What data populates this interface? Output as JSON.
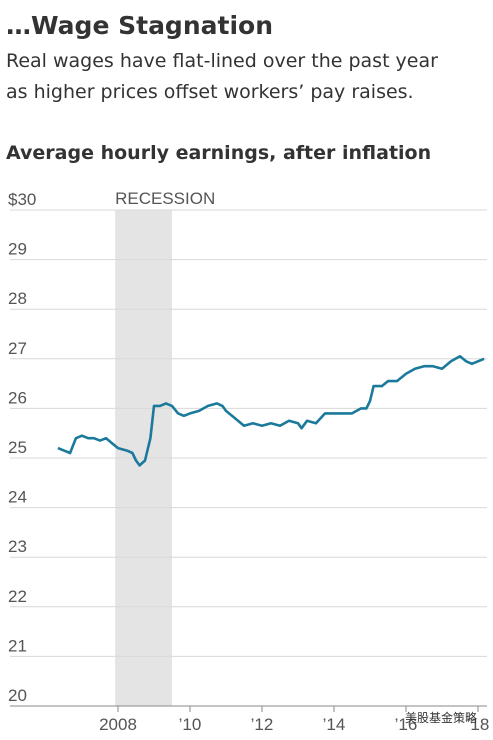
{
  "chart_data": {
    "type": "line",
    "title": "…Wage Stagnation",
    "subtitle": [
      "Real wages have flat-lined over the past year",
      "as higher prices offset workers’ pay raises."
    ],
    "chart_title": "Average hourly earnings, after inflation",
    "recession": {
      "label": "RECESSION",
      "start": 2007.92,
      "end": 2009.5
    },
    "watermark": "美股基金策略",
    "xlim": [
      2005,
      2018.25
    ],
    "xticks": [
      {
        "value": 2008,
        "label": "2008"
      },
      {
        "value": 2010,
        "label": "’10"
      },
      {
        "value": 2012,
        "label": "’12"
      },
      {
        "value": 2014,
        "label": "’14"
      },
      {
        "value": 2016,
        "label": "’16"
      },
      {
        "value": 2018,
        "label": "’18"
      }
    ],
    "ylim": [
      20,
      30
    ],
    "yticks": [
      {
        "value": 30,
        "label": "$30"
      },
      29,
      28,
      27,
      26,
      25,
      24,
      23,
      22,
      21,
      20
    ],
    "grid": true,
    "x": [
      2006.33,
      2006.5,
      2006.67,
      2006.83,
      2007.0,
      2007.17,
      2007.33,
      2007.5,
      2007.67,
      2007.83,
      2008.0,
      2008.25,
      2008.4,
      2008.5,
      2008.6,
      2008.75,
      2008.9,
      2009.0,
      2009.17,
      2009.33,
      2009.5,
      2009.67,
      2009.83,
      2010.0,
      2010.25,
      2010.5,
      2010.75,
      2010.9,
      2011.0,
      2011.25,
      2011.5,
      2011.75,
      2012.0,
      2012.25,
      2012.5,
      2012.75,
      2013.0,
      2013.1,
      2013.25,
      2013.5,
      2013.75,
      2014.0,
      2014.25,
      2014.5,
      2014.75,
      2014.9,
      2015.0,
      2015.1,
      2015.33,
      2015.5,
      2015.75,
      2016.0,
      2016.25,
      2016.5,
      2016.75,
      2017.0,
      2017.25,
      2017.5,
      2017.67,
      2017.83,
      2018.0,
      2018.17
    ],
    "series": [
      {
        "name": "Average hourly earnings",
        "color": "#1b7a9c",
        "values": [
          25.2,
          25.15,
          25.1,
          25.4,
          25.45,
          25.4,
          25.4,
          25.35,
          25.4,
          25.3,
          25.2,
          25.15,
          25.1,
          24.95,
          24.85,
          24.95,
          25.4,
          26.05,
          26.05,
          26.1,
          26.05,
          25.9,
          25.85,
          25.9,
          25.95,
          26.05,
          26.1,
          26.05,
          25.95,
          25.8,
          25.65,
          25.7,
          25.65,
          25.7,
          25.65,
          25.75,
          25.7,
          25.6,
          25.75,
          25.7,
          25.9,
          25.9,
          25.9,
          25.9,
          26.0,
          26.0,
          26.15,
          26.45,
          26.45,
          26.55,
          26.55,
          26.7,
          26.8,
          26.85,
          26.85,
          26.8,
          26.95,
          27.05,
          26.95,
          26.9,
          26.95,
          27.0
        ]
      }
    ]
  }
}
